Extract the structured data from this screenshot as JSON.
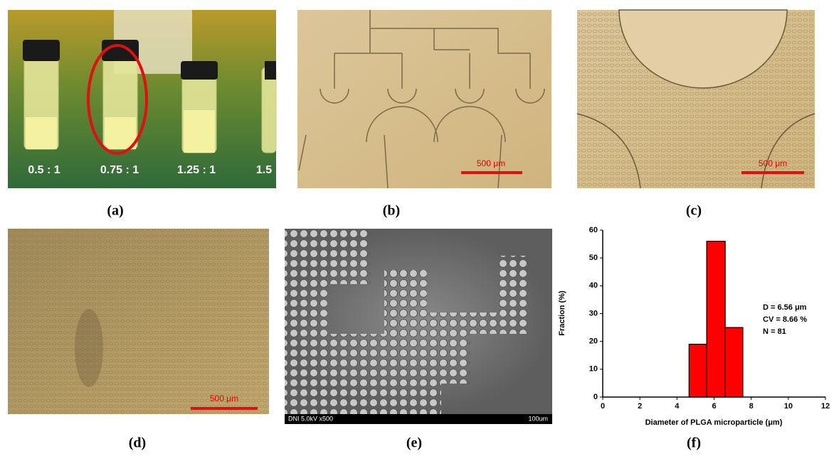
{
  "panels": [
    {
      "label": "(a)",
      "texts": [
        "0.5 : 1",
        "0.75 : 1",
        "1.25 : 1",
        "1.5"
      ]
    },
    {
      "label": "(b)",
      "scale_bar": "500 μm"
    },
    {
      "label": "(c)",
      "scale_bar": "500 μm"
    },
    {
      "label": "(d)",
      "scale_bar": "500 μm"
    },
    {
      "label": "(e)",
      "info": "DNI 5.0kV x500",
      "scale": "100um"
    },
    {
      "label": "(f)"
    }
  ],
  "chart_data": {
    "type": "histogram",
    "xlabel": "Diameter of PLGA microparticle (μm)",
    "ylabel": "Fraction (%)",
    "bins": [
      4.65,
      5.6,
      6.6,
      7.55
    ],
    "values": [
      19,
      56,
      25
    ],
    "color": "#ff0000",
    "xlim": [
      0,
      12
    ],
    "xticks": [
      0,
      2,
      4,
      6,
      8,
      10,
      12
    ],
    "ylim": [
      0,
      60
    ],
    "yticks": [
      0,
      10,
      20,
      30,
      40,
      50,
      60
    ],
    "annotations": [
      "D = 6.56 μm",
      "CV =  8.66 %",
      "N = 81"
    ]
  }
}
